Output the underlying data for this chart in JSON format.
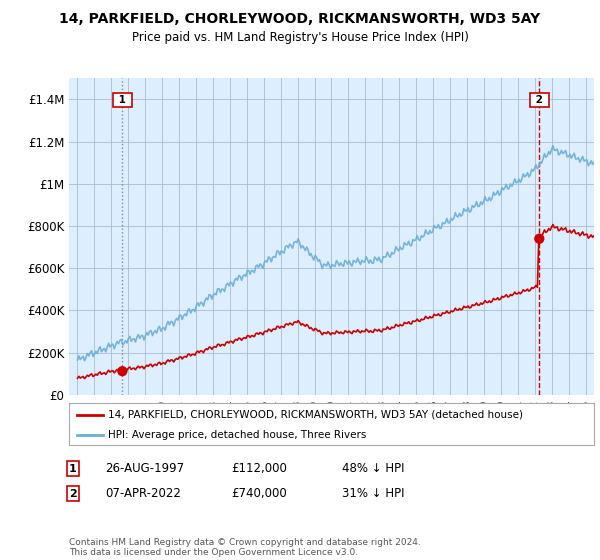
{
  "title_line1": "14, PARKFIELD, CHORLEYWOOD, RICKMANSWORTH, WD3 5AY",
  "title_line2": "Price paid vs. HM Land Registry's House Price Index (HPI)",
  "ylim": [
    0,
    1500000
  ],
  "yticks": [
    0,
    200000,
    400000,
    600000,
    800000,
    1000000,
    1200000,
    1400000
  ],
  "ytick_labels": [
    "£0",
    "£200K",
    "£400K",
    "£600K",
    "£800K",
    "£1M",
    "£1.2M",
    "£1.4M"
  ],
  "xlim_start": 1994.5,
  "xlim_end": 2025.5,
  "hpi_color": "#6baed6",
  "price_color": "#cc0000",
  "sale1_year": 1997.65,
  "sale1_price": 112000,
  "sale2_year": 2022.27,
  "sale2_price": 740000,
  "chart_bg": "#ddeeff",
  "legend_label1": "14, PARKFIELD, CHORLEYWOOD, RICKMANSWORTH, WD3 5AY (detached house)",
  "legend_label2": "HPI: Average price, detached house, Three Rivers",
  "annotation1_date": "26-AUG-1997",
  "annotation1_price": "£112,000",
  "annotation1_hpi": "48% ↓ HPI",
  "annotation2_date": "07-APR-2022",
  "annotation2_price": "£740,000",
  "annotation2_hpi": "31% ↓ HPI",
  "footer": "Contains HM Land Registry data © Crown copyright and database right 2024.\nThis data is licensed under the Open Government Licence v3.0.",
  "background_color": "#ffffff",
  "grid_color": "#aabbcc"
}
